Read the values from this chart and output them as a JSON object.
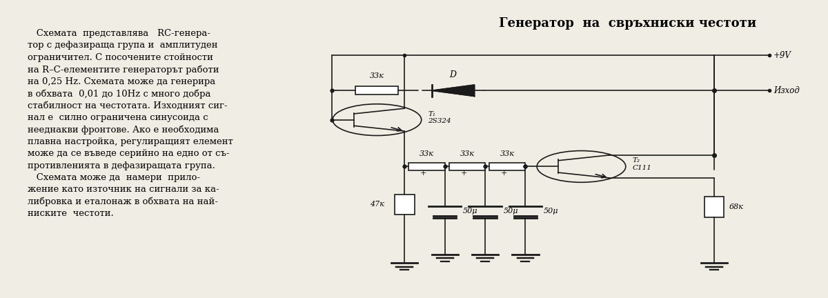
{
  "title": "Генератор  на  свръхниски честоти",
  "bg_color": "#f0ede4",
  "body_lines": [
    "   Схемата  представлява   RC-генера-",
    "тор с дефазираща група и  амплитуден",
    "ограничител. С посочените стойности",
    "на R–C-елементите генераторът работи",
    "на 0,25 Hz. Схемата може да генерира",
    "в обхвата  0,01 до 10Hz с много добра",
    "стабилност на честотата. Изходният сиг-",
    "нал е  силно ограничена синусоида с",
    "нееднакви фронтове. Ако е необходима",
    "плавна настройка, регулиращият елемент",
    "може да се въведе серийно на едно от съ-",
    "противленията в дефазиращата група.",
    "   Схемата може да  намери  прило-",
    "жение като източник на сигнали за ка-",
    "либровка и еталонаж в обхвата на най-",
    "ниските  честоти."
  ],
  "body_fontsize": 9.5,
  "lw": 1.2,
  "blk": "#1a1a1a"
}
